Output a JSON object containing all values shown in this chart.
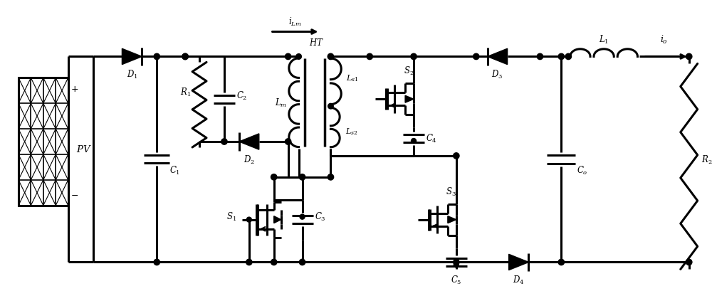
{
  "bg_color": "#ffffff",
  "line_color": "#000000",
  "line_width": 2.2,
  "figsize": [
    10.0,
    4.1
  ],
  "dpi": 100
}
